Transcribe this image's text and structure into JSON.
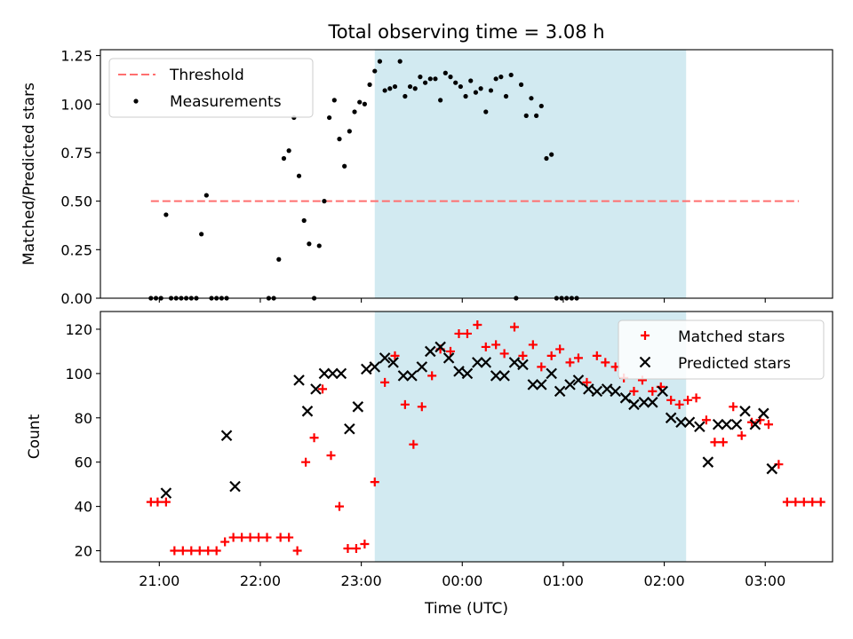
{
  "title": "Total observing time = 3.08 h",
  "colors": {
    "span": "#add8e6",
    "threshold": "#ff6f6f",
    "matched": "#ff0000",
    "predicted": "#000000",
    "measurements": "#000000"
  },
  "chart_data": [
    {
      "type": "scatter",
      "panel": "top",
      "ylabel": "Matched/Predicted stars",
      "xlabel": "",
      "ylim": [
        0,
        1.28
      ],
      "yticks": [
        "0.00",
        "0.25",
        "0.50",
        "0.75",
        "1.00",
        "1.25"
      ],
      "x_range_hours": [
        "20:25",
        "03:40"
      ],
      "shaded_span": [
        "23:08",
        "02:13"
      ],
      "legend": {
        "placement": "upper left",
        "entries": [
          "Threshold",
          "Measurements"
        ]
      },
      "threshold": {
        "name": "Threshold",
        "style": "dashed",
        "value": 0.5,
        "x": [
          "20:55",
          "03:20"
        ]
      },
      "series": [
        {
          "name": "Measurements",
          "points": [
            [
              "20:55",
              0.0
            ],
            [
              "20:58",
              0.0
            ],
            [
              "21:01",
              0.0
            ],
            [
              "21:04",
              0.43
            ],
            [
              "21:07",
              0.0
            ],
            [
              "21:10",
              0.0
            ],
            [
              "21:13",
              0.0
            ],
            [
              "21:16",
              0.0
            ],
            [
              "21:19",
              0.0
            ],
            [
              "21:22",
              0.0
            ],
            [
              "21:25",
              0.33
            ],
            [
              "21:28",
              0.53
            ],
            [
              "21:31",
              0.0
            ],
            [
              "21:34",
              0.0
            ],
            [
              "21:37",
              0.0
            ],
            [
              "21:40",
              0.0
            ],
            [
              "22:05",
              0.0
            ],
            [
              "22:08",
              0.0
            ],
            [
              "22:11",
              0.2
            ],
            [
              "22:14",
              0.72
            ],
            [
              "22:17",
              0.76
            ],
            [
              "22:20",
              0.93
            ],
            [
              "22:23",
              0.63
            ],
            [
              "22:26",
              0.4
            ],
            [
              "22:29",
              0.28
            ],
            [
              "22:32",
              0.0
            ],
            [
              "22:35",
              0.27
            ],
            [
              "22:38",
              0.5
            ],
            [
              "22:41",
              0.93
            ],
            [
              "22:44",
              1.02
            ],
            [
              "22:47",
              0.82
            ],
            [
              "22:50",
              0.68
            ],
            [
              "22:53",
              0.86
            ],
            [
              "22:56",
              0.96
            ],
            [
              "22:59",
              1.01
            ],
            [
              "23:02",
              1.0
            ],
            [
              "23:05",
              1.1
            ],
            [
              "23:08",
              1.17
            ],
            [
              "23:11",
              1.22
            ],
            [
              "23:14",
              1.07
            ],
            [
              "23:17",
              1.08
            ],
            [
              "23:20",
              1.09
            ],
            [
              "23:23",
              1.22
            ],
            [
              "23:26",
              1.04
            ],
            [
              "23:29",
              1.09
            ],
            [
              "23:32",
              1.08
            ],
            [
              "23:35",
              1.14
            ],
            [
              "23:38",
              1.11
            ],
            [
              "23:41",
              1.13
            ],
            [
              "23:44",
              1.13
            ],
            [
              "23:47",
              1.02
            ],
            [
              "23:50",
              1.16
            ],
            [
              "23:53",
              1.14
            ],
            [
              "23:56",
              1.11
            ],
            [
              "23:59",
              1.09
            ],
            [
              "00:02",
              1.04
            ],
            [
              "00:05",
              1.12
            ],
            [
              "00:08",
              1.06
            ],
            [
              "00:11",
              1.08
            ],
            [
              "00:14",
              0.96
            ],
            [
              "00:17",
              1.07
            ],
            [
              "00:20",
              1.13
            ],
            [
              "00:23",
              1.14
            ],
            [
              "00:26",
              1.04
            ],
            [
              "00:29",
              1.15
            ],
            [
              "00:32",
              0.0
            ],
            [
              "00:35",
              1.1
            ],
            [
              "00:38",
              0.94
            ],
            [
              "00:41",
              1.03
            ],
            [
              "00:44",
              0.94
            ],
            [
              "00:47",
              0.99
            ],
            [
              "00:50",
              0.72
            ],
            [
              "00:53",
              0.74
            ],
            [
              "00:56",
              0.0
            ],
            [
              "00:59",
              0.0
            ],
            [
              "01:02",
              0.0
            ],
            [
              "01:05",
              0.0
            ],
            [
              "01:08",
              0.0
            ]
          ]
        }
      ]
    },
    {
      "type": "scatter",
      "panel": "bottom",
      "ylabel": "Count",
      "xlabel": "Time (UTC)",
      "ylim": [
        15,
        128
      ],
      "yticks": [
        "20",
        "40",
        "60",
        "80",
        "100",
        "120"
      ],
      "xticks": [
        "21:00",
        "22:00",
        "23:00",
        "00:00",
        "01:00",
        "02:00",
        "03:00"
      ],
      "shaded_span": [
        "23:08",
        "02:13"
      ],
      "legend": {
        "placement": "upper right",
        "entries": [
          "Matched stars",
          "Predicted stars"
        ]
      },
      "series": [
        {
          "name": "Matched stars",
          "marker": "plus",
          "points": [
            [
              "20:55",
              42
            ],
            [
              "20:59",
              42
            ],
            [
              "21:04",
              42
            ],
            [
              "21:09",
              20
            ],
            [
              "21:14",
              20
            ],
            [
              "21:19",
              20
            ],
            [
              "21:24",
              20
            ],
            [
              "21:29",
              20
            ],
            [
              "21:34",
              20
            ],
            [
              "21:39",
              24
            ],
            [
              "21:44",
              26
            ],
            [
              "21:49",
              26
            ],
            [
              "21:54",
              26
            ],
            [
              "21:59",
              26
            ],
            [
              "22:04",
              26
            ],
            [
              "22:12",
              26
            ],
            [
              "22:17",
              26
            ],
            [
              "22:22",
              20
            ],
            [
              "22:27",
              60
            ],
            [
              "22:32",
              71
            ],
            [
              "22:37",
              93
            ],
            [
              "22:42",
              63
            ],
            [
              "22:47",
              40
            ],
            [
              "22:52",
              21
            ],
            [
              "22:57",
              21
            ],
            [
              "23:02",
              23
            ],
            [
              "23:08",
              51
            ],
            [
              "23:14",
              96
            ],
            [
              "23:20",
              108
            ],
            [
              "23:26",
              86
            ],
            [
              "23:31",
              68
            ],
            [
              "23:36",
              85
            ],
            [
              "23:42",
              99
            ],
            [
              "23:47",
              111
            ],
            [
              "23:53",
              110
            ],
            [
              "23:58",
              118
            ],
            [
              "00:03",
              118
            ],
            [
              "00:09",
              122
            ],
            [
              "00:14",
              112
            ],
            [
              "00:20",
              113
            ],
            [
              "00:25",
              109
            ],
            [
              "00:31",
              121
            ],
            [
              "00:36",
              108
            ],
            [
              "00:42",
              113
            ],
            [
              "00:47",
              103
            ],
            [
              "00:53",
              108
            ],
            [
              "00:58",
              111
            ],
            [
              "01:04",
              105
            ],
            [
              "01:09",
              107
            ],
            [
              "01:14",
              96
            ],
            [
              "01:20",
              108
            ],
            [
              "01:25",
              105
            ],
            [
              "01:31",
              103
            ],
            [
              "01:36",
              98
            ],
            [
              "01:42",
              92
            ],
            [
              "01:47",
              97
            ],
            [
              "01:53",
              92
            ],
            [
              "01:58",
              94
            ],
            [
              "02:04",
              88
            ],
            [
              "02:09",
              86
            ],
            [
              "02:14",
              88
            ],
            [
              "02:19",
              89
            ],
            [
              "02:25",
              79
            ],
            [
              "02:30",
              69
            ],
            [
              "02:35",
              69
            ],
            [
              "02:41",
              85
            ],
            [
              "02:46",
              72
            ],
            [
              "02:52",
              78
            ],
            [
              "02:57",
              79
            ],
            [
              "03:02",
              77
            ],
            [
              "03:08",
              59
            ],
            [
              "03:13",
              42
            ],
            [
              "03:18",
              42
            ],
            [
              "03:23",
              42
            ],
            [
              "03:28",
              42
            ],
            [
              "03:33",
              42
            ]
          ]
        },
        {
          "name": "Predicted stars",
          "marker": "x",
          "points": [
            [
              "21:04",
              46
            ],
            [
              "21:40",
              72
            ],
            [
              "21:45",
              49
            ],
            [
              "22:23",
              97
            ],
            [
              "22:28",
              83
            ],
            [
              "22:33",
              93
            ],
            [
              "22:38",
              100
            ],
            [
              "22:43",
              100
            ],
            [
              "22:48",
              100
            ],
            [
              "22:53",
              75
            ],
            [
              "22:58",
              85
            ],
            [
              "23:03",
              102
            ],
            [
              "23:08",
              103
            ],
            [
              "23:14",
              107
            ],
            [
              "23:19",
              105
            ],
            [
              "23:25",
              99
            ],
            [
              "23:30",
              99
            ],
            [
              "23:36",
              103
            ],
            [
              "23:41",
              110
            ],
            [
              "23:47",
              112
            ],
            [
              "23:52",
              107
            ],
            [
              "23:58",
              101
            ],
            [
              "00:03",
              100
            ],
            [
              "00:09",
              105
            ],
            [
              "00:14",
              105
            ],
            [
              "00:20",
              99
            ],
            [
              "00:25",
              99
            ],
            [
              "00:31",
              105
            ],
            [
              "00:36",
              104
            ],
            [
              "00:42",
              95
            ],
            [
              "00:47",
              95
            ],
            [
              "00:53",
              100
            ],
            [
              "00:58",
              92
            ],
            [
              "01:04",
              95
            ],
            [
              "01:09",
              97
            ],
            [
              "01:15",
              93
            ],
            [
              "01:20",
              92
            ],
            [
              "01:26",
              93
            ],
            [
              "01:31",
              92
            ],
            [
              "01:37",
              89
            ],
            [
              "01:42",
              86
            ],
            [
              "01:48",
              87
            ],
            [
              "01:53",
              87
            ],
            [
              "01:59",
              92
            ],
            [
              "02:04",
              80
            ],
            [
              "02:10",
              78
            ],
            [
              "02:15",
              78
            ],
            [
              "02:21",
              76
            ],
            [
              "02:26",
              60
            ],
            [
              "02:32",
              77
            ],
            [
              "02:37",
              77
            ],
            [
              "02:43",
              77
            ],
            [
              "02:48",
              83
            ],
            [
              "02:54",
              77
            ],
            [
              "02:59",
              82
            ],
            [
              "03:04",
              57
            ]
          ]
        }
      ]
    }
  ]
}
